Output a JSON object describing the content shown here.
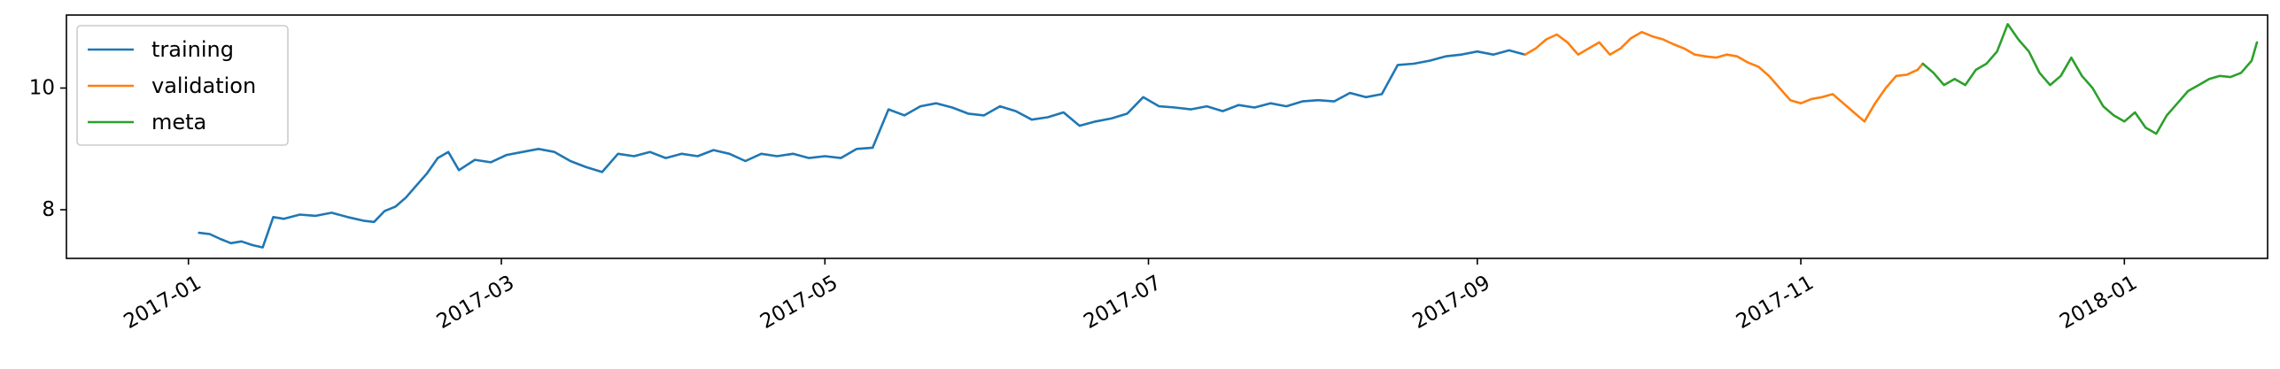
{
  "chart_data": {
    "type": "line",
    "title": "",
    "xlabel": "",
    "ylabel": "",
    "xlim": [
      "2016-12-09",
      "2018-01-28"
    ],
    "ylim": [
      7.2,
      11.2
    ],
    "grid": false,
    "legend_position": "top-left",
    "x_ticks": [
      {
        "date": "2017-01-01",
        "label": "2017-01"
      },
      {
        "date": "2017-03-01",
        "label": "2017-03"
      },
      {
        "date": "2017-05-01",
        "label": "2017-05"
      },
      {
        "date": "2017-07-01",
        "label": "2017-07"
      },
      {
        "date": "2017-09-01",
        "label": "2017-09"
      },
      {
        "date": "2017-11-01",
        "label": "2017-11"
      },
      {
        "date": "2018-01-01",
        "label": "2018-01"
      }
    ],
    "y_ticks": [
      {
        "value": 8,
        "label": "8"
      },
      {
        "value": 10,
        "label": "10"
      }
    ],
    "series": [
      {
        "name": "training",
        "color": "#1f77b4",
        "points": [
          [
            "2017-01-03",
            7.62
          ],
          [
            "2017-01-05",
            7.6
          ],
          [
            "2017-01-07",
            7.52
          ],
          [
            "2017-01-09",
            7.45
          ],
          [
            "2017-01-11",
            7.48
          ],
          [
            "2017-01-13",
            7.42
          ],
          [
            "2017-01-15",
            7.38
          ],
          [
            "2017-01-17",
            7.88
          ],
          [
            "2017-01-19",
            7.85
          ],
          [
            "2017-01-22",
            7.92
          ],
          [
            "2017-01-25",
            7.9
          ],
          [
            "2017-01-28",
            7.95
          ],
          [
            "2017-01-31",
            7.88
          ],
          [
            "2017-02-03",
            7.82
          ],
          [
            "2017-02-05",
            7.8
          ],
          [
            "2017-02-07",
            7.98
          ],
          [
            "2017-02-09",
            8.05
          ],
          [
            "2017-02-11",
            8.2
          ],
          [
            "2017-02-13",
            8.4
          ],
          [
            "2017-02-15",
            8.6
          ],
          [
            "2017-02-17",
            8.85
          ],
          [
            "2017-02-19",
            8.95
          ],
          [
            "2017-02-21",
            8.65
          ],
          [
            "2017-02-24",
            8.82
          ],
          [
            "2017-02-27",
            8.78
          ],
          [
            "2017-03-02",
            8.9
          ],
          [
            "2017-03-05",
            8.95
          ],
          [
            "2017-03-08",
            9.0
          ],
          [
            "2017-03-11",
            8.95
          ],
          [
            "2017-03-14",
            8.8
          ],
          [
            "2017-03-17",
            8.7
          ],
          [
            "2017-03-20",
            8.62
          ],
          [
            "2017-03-23",
            8.92
          ],
          [
            "2017-03-26",
            8.88
          ],
          [
            "2017-03-29",
            8.95
          ],
          [
            "2017-04-01",
            8.85
          ],
          [
            "2017-04-04",
            8.92
          ],
          [
            "2017-04-07",
            8.88
          ],
          [
            "2017-04-10",
            8.98
          ],
          [
            "2017-04-13",
            8.92
          ],
          [
            "2017-04-16",
            8.8
          ],
          [
            "2017-04-19",
            8.92
          ],
          [
            "2017-04-22",
            8.88
          ],
          [
            "2017-04-25",
            8.92
          ],
          [
            "2017-04-28",
            8.85
          ],
          [
            "2017-05-01",
            8.88
          ],
          [
            "2017-05-04",
            8.85
          ],
          [
            "2017-05-07",
            9.0
          ],
          [
            "2017-05-10",
            9.02
          ],
          [
            "2017-05-13",
            9.65
          ],
          [
            "2017-05-16",
            9.55
          ],
          [
            "2017-05-19",
            9.7
          ],
          [
            "2017-05-22",
            9.75
          ],
          [
            "2017-05-25",
            9.68
          ],
          [
            "2017-05-28",
            9.58
          ],
          [
            "2017-05-31",
            9.55
          ],
          [
            "2017-06-03",
            9.7
          ],
          [
            "2017-06-06",
            9.62
          ],
          [
            "2017-06-09",
            9.48
          ],
          [
            "2017-06-12",
            9.52
          ],
          [
            "2017-06-15",
            9.6
          ],
          [
            "2017-06-18",
            9.38
          ],
          [
            "2017-06-21",
            9.45
          ],
          [
            "2017-06-24",
            9.5
          ],
          [
            "2017-06-27",
            9.58
          ],
          [
            "2017-06-30",
            9.85
          ],
          [
            "2017-07-03",
            9.7
          ],
          [
            "2017-07-06",
            9.68
          ],
          [
            "2017-07-09",
            9.65
          ],
          [
            "2017-07-12",
            9.7
          ],
          [
            "2017-07-15",
            9.62
          ],
          [
            "2017-07-18",
            9.72
          ],
          [
            "2017-07-21",
            9.68
          ],
          [
            "2017-07-24",
            9.75
          ],
          [
            "2017-07-27",
            9.7
          ],
          [
            "2017-07-30",
            9.78
          ],
          [
            "2017-08-02",
            9.8
          ],
          [
            "2017-08-05",
            9.78
          ],
          [
            "2017-08-08",
            9.92
          ],
          [
            "2017-08-11",
            9.85
          ],
          [
            "2017-08-14",
            9.9
          ],
          [
            "2017-08-17",
            10.38
          ],
          [
            "2017-08-20",
            10.4
          ],
          [
            "2017-08-23",
            10.45
          ],
          [
            "2017-08-26",
            10.52
          ],
          [
            "2017-08-29",
            10.55
          ],
          [
            "2017-09-01",
            10.6
          ],
          [
            "2017-09-04",
            10.55
          ],
          [
            "2017-09-07",
            10.62
          ],
          [
            "2017-09-10",
            10.55
          ]
        ]
      },
      {
        "name": "validation",
        "color": "#ff7f0e",
        "points": [
          [
            "2017-09-10",
            10.55
          ],
          [
            "2017-09-12",
            10.65
          ],
          [
            "2017-09-14",
            10.8
          ],
          [
            "2017-09-16",
            10.88
          ],
          [
            "2017-09-18",
            10.75
          ],
          [
            "2017-09-20",
            10.55
          ],
          [
            "2017-09-22",
            10.65
          ],
          [
            "2017-09-24",
            10.75
          ],
          [
            "2017-09-26",
            10.55
          ],
          [
            "2017-09-28",
            10.65
          ],
          [
            "2017-09-30",
            10.82
          ],
          [
            "2017-10-02",
            10.92
          ],
          [
            "2017-10-04",
            10.85
          ],
          [
            "2017-10-06",
            10.8
          ],
          [
            "2017-10-08",
            10.72
          ],
          [
            "2017-10-10",
            10.65
          ],
          [
            "2017-10-12",
            10.55
          ],
          [
            "2017-10-14",
            10.52
          ],
          [
            "2017-10-16",
            10.5
          ],
          [
            "2017-10-18",
            10.55
          ],
          [
            "2017-10-20",
            10.52
          ],
          [
            "2017-10-22",
            10.42
          ],
          [
            "2017-10-24",
            10.35
          ],
          [
            "2017-10-26",
            10.2
          ],
          [
            "2017-10-28",
            10.0
          ],
          [
            "2017-10-30",
            9.8
          ],
          [
            "2017-11-01",
            9.75
          ],
          [
            "2017-11-03",
            9.82
          ],
          [
            "2017-11-05",
            9.85
          ],
          [
            "2017-11-07",
            9.9
          ],
          [
            "2017-11-09",
            9.75
          ],
          [
            "2017-11-11",
            9.6
          ],
          [
            "2017-11-13",
            9.45
          ],
          [
            "2017-11-15",
            9.75
          ],
          [
            "2017-11-17",
            10.0
          ],
          [
            "2017-11-19",
            10.2
          ],
          [
            "2017-11-21",
            10.22
          ],
          [
            "2017-11-23",
            10.3
          ],
          [
            "2017-11-24",
            10.4
          ]
        ]
      },
      {
        "name": "meta",
        "color": "#2ca02c",
        "points": [
          [
            "2017-11-24",
            10.4
          ],
          [
            "2017-11-26",
            10.25
          ],
          [
            "2017-11-28",
            10.05
          ],
          [
            "2017-11-30",
            10.15
          ],
          [
            "2017-12-02",
            10.05
          ],
          [
            "2017-12-04",
            10.3
          ],
          [
            "2017-12-06",
            10.4
          ],
          [
            "2017-12-08",
            10.6
          ],
          [
            "2017-12-10",
            11.05
          ],
          [
            "2017-12-12",
            10.8
          ],
          [
            "2017-12-14",
            10.6
          ],
          [
            "2017-12-16",
            10.25
          ],
          [
            "2017-12-18",
            10.05
          ],
          [
            "2017-12-20",
            10.2
          ],
          [
            "2017-12-22",
            10.5
          ],
          [
            "2017-12-24",
            10.2
          ],
          [
            "2017-12-26",
            10.0
          ],
          [
            "2017-12-28",
            9.7
          ],
          [
            "2017-12-30",
            9.55
          ],
          [
            "2018-01-01",
            9.45
          ],
          [
            "2018-01-03",
            9.6
          ],
          [
            "2018-01-05",
            9.35
          ],
          [
            "2018-01-07",
            9.25
          ],
          [
            "2018-01-09",
            9.55
          ],
          [
            "2018-01-11",
            9.75
          ],
          [
            "2018-01-13",
            9.95
          ],
          [
            "2018-01-15",
            10.05
          ],
          [
            "2018-01-17",
            10.15
          ],
          [
            "2018-01-19",
            10.2
          ],
          [
            "2018-01-21",
            10.18
          ],
          [
            "2018-01-23",
            10.25
          ],
          [
            "2018-01-25",
            10.45
          ],
          [
            "2018-01-26",
            10.75
          ]
        ]
      }
    ]
  }
}
